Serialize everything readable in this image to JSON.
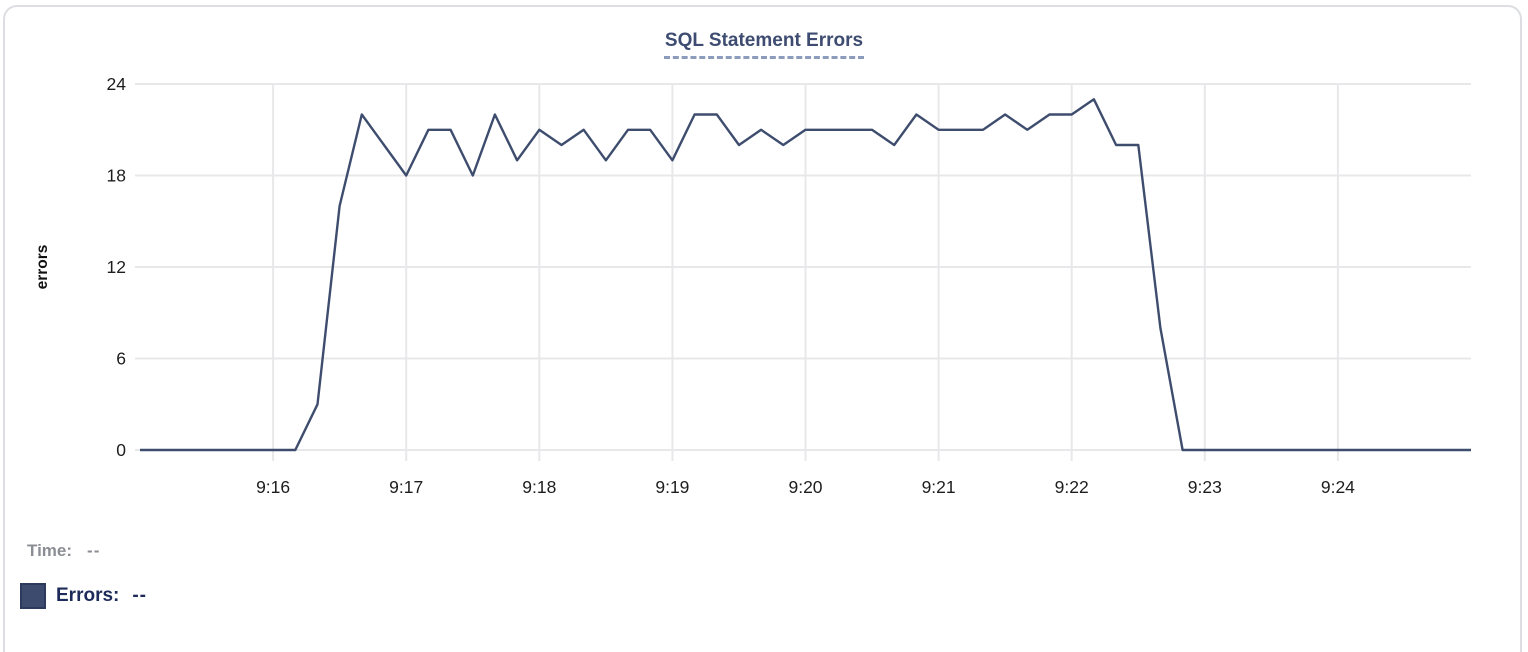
{
  "readout": {
    "time_label": "Time:",
    "time_value": "--",
    "errors_label": "Errors:",
    "errors_value": "--"
  },
  "colors": {
    "series_line": "#3e4d6e",
    "title_text": "#3d4c70",
    "title_underline": "#8d9bbd",
    "legend_errors_text": "#1e2b5a",
    "readout_muted_text": "#8b8e94",
    "gridline": "#e8e8ea",
    "axis_text": "#1d1d1f"
  },
  "chart_data": {
    "type": "line",
    "title": "SQL Statement Errors",
    "xlabel": "",
    "ylabel": "errors",
    "ylim": [
      0,
      24
    ],
    "y_ticks": [
      0,
      6,
      12,
      18,
      24
    ],
    "x_tick_labels": [
      "9:16",
      "9:17",
      "9:18",
      "9:19",
      "9:20",
      "9:21",
      "9:22",
      "9:23",
      "9:24"
    ],
    "x_range": [
      "9:15:00",
      "9:25:00"
    ],
    "sample_interval_seconds": 10,
    "grid": true,
    "legend_position": "bottom-left",
    "series": [
      {
        "name": "Errors",
        "color": "#3e4d6e",
        "x": [
          "9:15:00",
          "9:15:10",
          "9:15:20",
          "9:15:30",
          "9:15:40",
          "9:15:50",
          "9:16:00",
          "9:16:10",
          "9:16:20",
          "9:16:30",
          "9:16:40",
          "9:16:50",
          "9:17:00",
          "9:17:10",
          "9:17:20",
          "9:17:30",
          "9:17:40",
          "9:17:50",
          "9:18:00",
          "9:18:10",
          "9:18:20",
          "9:18:30",
          "9:18:40",
          "9:18:50",
          "9:19:00",
          "9:19:10",
          "9:19:20",
          "9:19:30",
          "9:19:40",
          "9:19:50",
          "9:20:00",
          "9:20:10",
          "9:20:20",
          "9:20:30",
          "9:20:40",
          "9:20:50",
          "9:21:00",
          "9:21:10",
          "9:21:20",
          "9:21:30",
          "9:21:40",
          "9:21:50",
          "9:22:00",
          "9:22:10",
          "9:22:20",
          "9:22:30",
          "9:22:40",
          "9:22:50",
          "9:23:00",
          "9:23:10",
          "9:23:20",
          "9:23:30",
          "9:23:40",
          "9:23:50",
          "9:24:00",
          "9:24:10",
          "9:24:20",
          "9:24:30",
          "9:24:40",
          "9:24:50",
          "9:25:00"
        ],
        "values": [
          0,
          0,
          0,
          0,
          0,
          0,
          0,
          0,
          3,
          16,
          22,
          20,
          18,
          21,
          21,
          18,
          22,
          19,
          21,
          20,
          21,
          19,
          21,
          21,
          19,
          22,
          22,
          20,
          21,
          20,
          21,
          21,
          21,
          21,
          20,
          22,
          21,
          21,
          21,
          22,
          21,
          22,
          22,
          23,
          20,
          20,
          8,
          0,
          0,
          0,
          0,
          0,
          0,
          0,
          0,
          0,
          0,
          0,
          0,
          0,
          0
        ]
      }
    ]
  }
}
